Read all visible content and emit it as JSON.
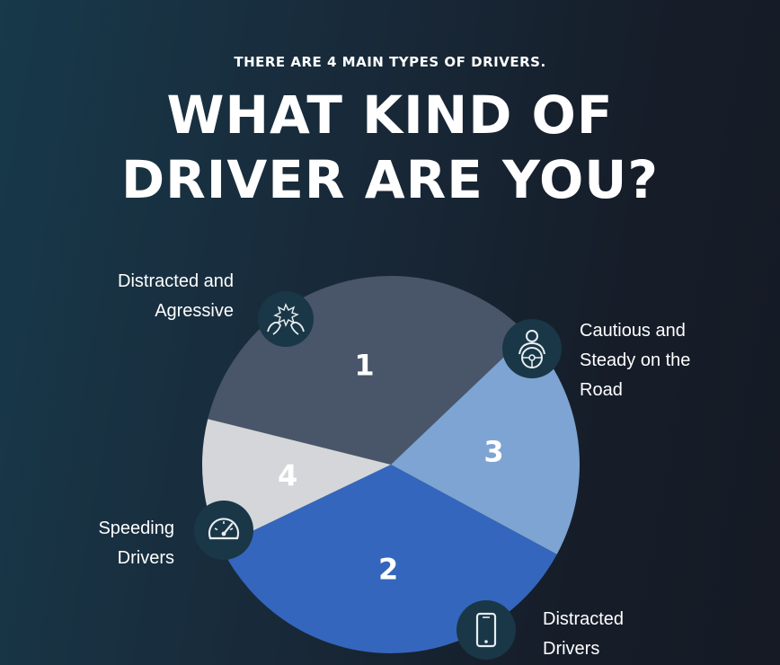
{
  "header": {
    "subtitle": "THERE ARE 4 MAIN TYPES OF DRIVERS.",
    "title_line1": "WHAT KIND OF",
    "title_line2": "DRIVER ARE YOU?"
  },
  "chart_data": {
    "type": "pie",
    "slices": [
      {
        "label": "1",
        "value": 34,
        "color": "#495569",
        "callout": [
          "Cautious and",
          "Steady on the",
          "Road"
        ],
        "icon": "steering-wheel-driver-icon"
      },
      {
        "label": "3",
        "value": 20,
        "color": "#7da4d2",
        "callout": [
          "Distracted",
          "Drivers"
        ],
        "icon": "smartphone-icon"
      },
      {
        "label": "2",
        "value": 35,
        "color": "#3466bd",
        "callout": [
          "Speeding",
          "Drivers"
        ],
        "icon": "speedometer-icon"
      },
      {
        "label": "4",
        "value": 11,
        "color": "#d4d6da",
        "callout": [
          "Distracted and",
          "Agressive"
        ],
        "icon": "angry-fists-icon"
      }
    ]
  }
}
